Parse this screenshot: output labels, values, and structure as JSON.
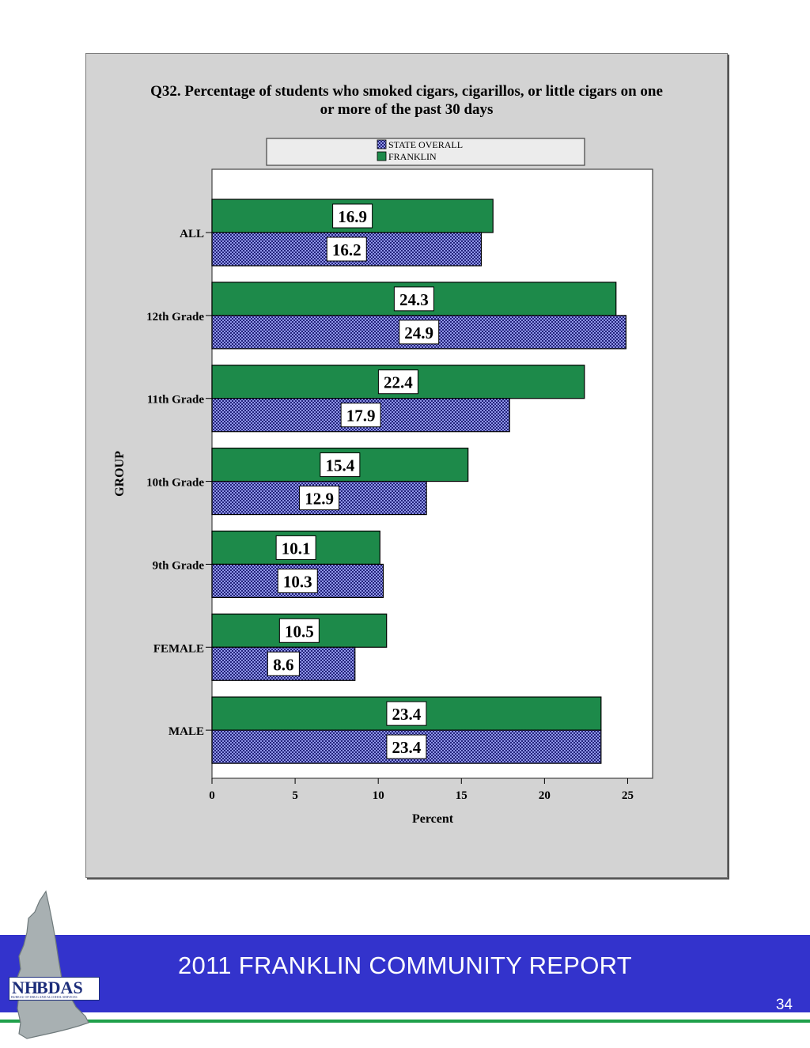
{
  "chart_data": {
    "type": "bar",
    "orientation": "horizontal",
    "title_line1": "Q32. Percentage of students who smoked cigars, cigarillos, or little cigars on one",
    "title_line2": "or more of the past 30 days",
    "xlabel": "Percent",
    "ylabel": "GROUP",
    "xlim": [
      0,
      26.5
    ],
    "xticks": [
      0,
      5,
      10,
      15,
      20,
      25
    ],
    "legend_placement": "top",
    "categories": [
      "ALL",
      "12th Grade",
      "11th Grade",
      "10th Grade",
      "9th Grade",
      "FEMALE",
      "MALE"
    ],
    "series": [
      {
        "name": "FRANKLIN",
        "color": "#1d8a4a",
        "pattern": "solid",
        "values": [
          16.9,
          24.3,
          22.4,
          15.4,
          10.1,
          10.5,
          23.4
        ],
        "labels": [
          "16.9",
          "24.3",
          "22.4",
          "15.4",
          "10.1",
          "10.5",
          "23.4"
        ]
      },
      {
        "name": "STATE OVERALL",
        "color": "#2a2a8c",
        "pattern": "checkerboard",
        "values": [
          16.2,
          24.9,
          17.9,
          12.9,
          10.3,
          8.6,
          23.4
        ],
        "labels": [
          "16.2",
          "24.9",
          "17.9",
          "12.9",
          "10.3",
          "8.6",
          "23.4"
        ]
      }
    ],
    "legend_order": [
      "STATE OVERALL",
      "FRANKLIN"
    ]
  },
  "footer": {
    "report_title": "2011 FRANKLIN COMMUNITY REPORT",
    "page_number": "34",
    "band_color": "#3333cc",
    "rule_color": "#1fa04a"
  },
  "logo": {
    "text_nh": "NH",
    "text_bdas": "BDAS",
    "subtitle": "BUREAU OF DRUG AND ALCOHOL SERVICES"
  }
}
